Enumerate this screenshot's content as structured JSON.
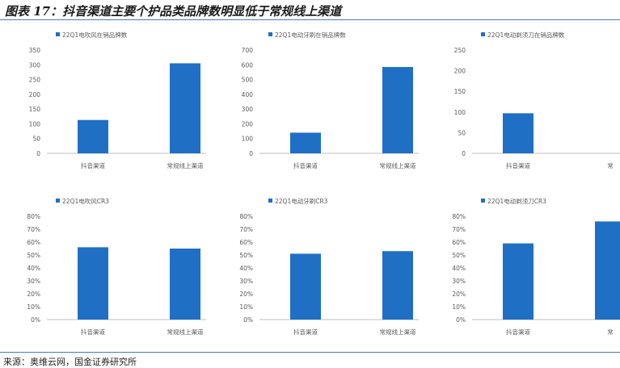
{
  "title": "图表 17：抖音渠道主要个护品类品牌数明显低于常规线上渠道",
  "source": "来源：奥维云网，国金证券研究所",
  "colors": {
    "bar": "#1f6fc5",
    "axis": "#bfbfbf",
    "text": "#595959"
  },
  "chart_data": [
    {
      "type": "bar",
      "title": "22Q1电吹风在销品牌数",
      "categories": [
        "抖音渠道",
        "常规线上渠道"
      ],
      "series": [
        {
          "name": "22Q1电吹风在销品牌数",
          "values": [
            113,
            305
          ]
        }
      ],
      "ylim": [
        0,
        350
      ],
      "yticks": [
        0,
        50,
        100,
        150,
        200,
        250,
        300,
        350
      ],
      "ytick_labels": [
        "0",
        "50",
        "100",
        "150",
        "200",
        "250",
        "300",
        "350"
      ],
      "grid": false,
      "legend": "top"
    },
    {
      "type": "bar",
      "title": "22Q1电动牙刷在销品牌数",
      "categories": [
        "抖音渠道",
        "常规线上渠道"
      ],
      "series": [
        {
          "name": "22Q1电动牙刷在销品牌数",
          "values": [
            140,
            585
          ]
        }
      ],
      "ylim": [
        0,
        700
      ],
      "yticks": [
        0,
        100,
        200,
        300,
        400,
        500,
        600,
        700
      ],
      "ytick_labels": [
        "0",
        "100",
        "200",
        "300",
        "400",
        "500",
        "600",
        "700"
      ],
      "grid": false,
      "legend": "top"
    },
    {
      "type": "bar",
      "title": "22Q1电动剃须刀在销品牌数",
      "categories": [
        "抖音渠道",
        "常"
      ],
      "series": [
        {
          "name": "22Q1电动剃须刀在销品牌数",
          "values": [
            97,
            null
          ]
        }
      ],
      "ylim": [
        0,
        250
      ],
      "yticks": [
        0,
        50,
        100,
        150,
        200,
        250
      ],
      "ytick_labels": [
        "0",
        "50",
        "100",
        "150",
        "200",
        "250"
      ],
      "grid": false,
      "legend": "top"
    },
    {
      "type": "bar",
      "title": "22Q1电吹风CR3",
      "categories": [
        "抖音渠道",
        "常规线上渠道"
      ],
      "series": [
        {
          "name": "22Q1电吹风CR3",
          "values": [
            0.56,
            0.55
          ]
        }
      ],
      "ylim": [
        0,
        0.8
      ],
      "yticks": [
        0,
        0.1,
        0.2,
        0.3,
        0.4,
        0.5,
        0.6,
        0.7,
        0.8
      ],
      "ytick_labels": [
        "0%",
        "10%",
        "20%",
        "30%",
        "40%",
        "50%",
        "60%",
        "70%",
        "80%"
      ],
      "grid": false,
      "legend": "top"
    },
    {
      "type": "bar",
      "title": "22Q1电动牙刷CR3",
      "categories": [
        "抖音渠道",
        "常规线上渠道"
      ],
      "series": [
        {
          "name": "22Q1电动牙刷CR3",
          "values": [
            0.51,
            0.53
          ]
        }
      ],
      "ylim": [
        0,
        0.8
      ],
      "yticks": [
        0,
        0.1,
        0.2,
        0.3,
        0.4,
        0.5,
        0.6,
        0.7,
        0.8
      ],
      "ytick_labels": [
        "0%",
        "10%",
        "20%",
        "30%",
        "40%",
        "50%",
        "60%",
        "70%",
        "80%"
      ],
      "grid": false,
      "legend": "top"
    },
    {
      "type": "bar",
      "title": "22Q1电动剃须刀CR3",
      "categories": [
        "抖音渠道",
        "常"
      ],
      "series": [
        {
          "name": "22Q1电动剃须刀CR3",
          "values": [
            0.59,
            0.76
          ]
        }
      ],
      "ylim": [
        0,
        0.8
      ],
      "yticks": [
        0,
        0.1,
        0.2,
        0.3,
        0.4,
        0.5,
        0.6,
        0.7,
        0.8
      ],
      "ytick_labels": [
        "0%",
        "10%",
        "20%",
        "30%",
        "40%",
        "50%",
        "60%",
        "70%",
        "80%"
      ],
      "grid": false,
      "legend": "top"
    }
  ]
}
